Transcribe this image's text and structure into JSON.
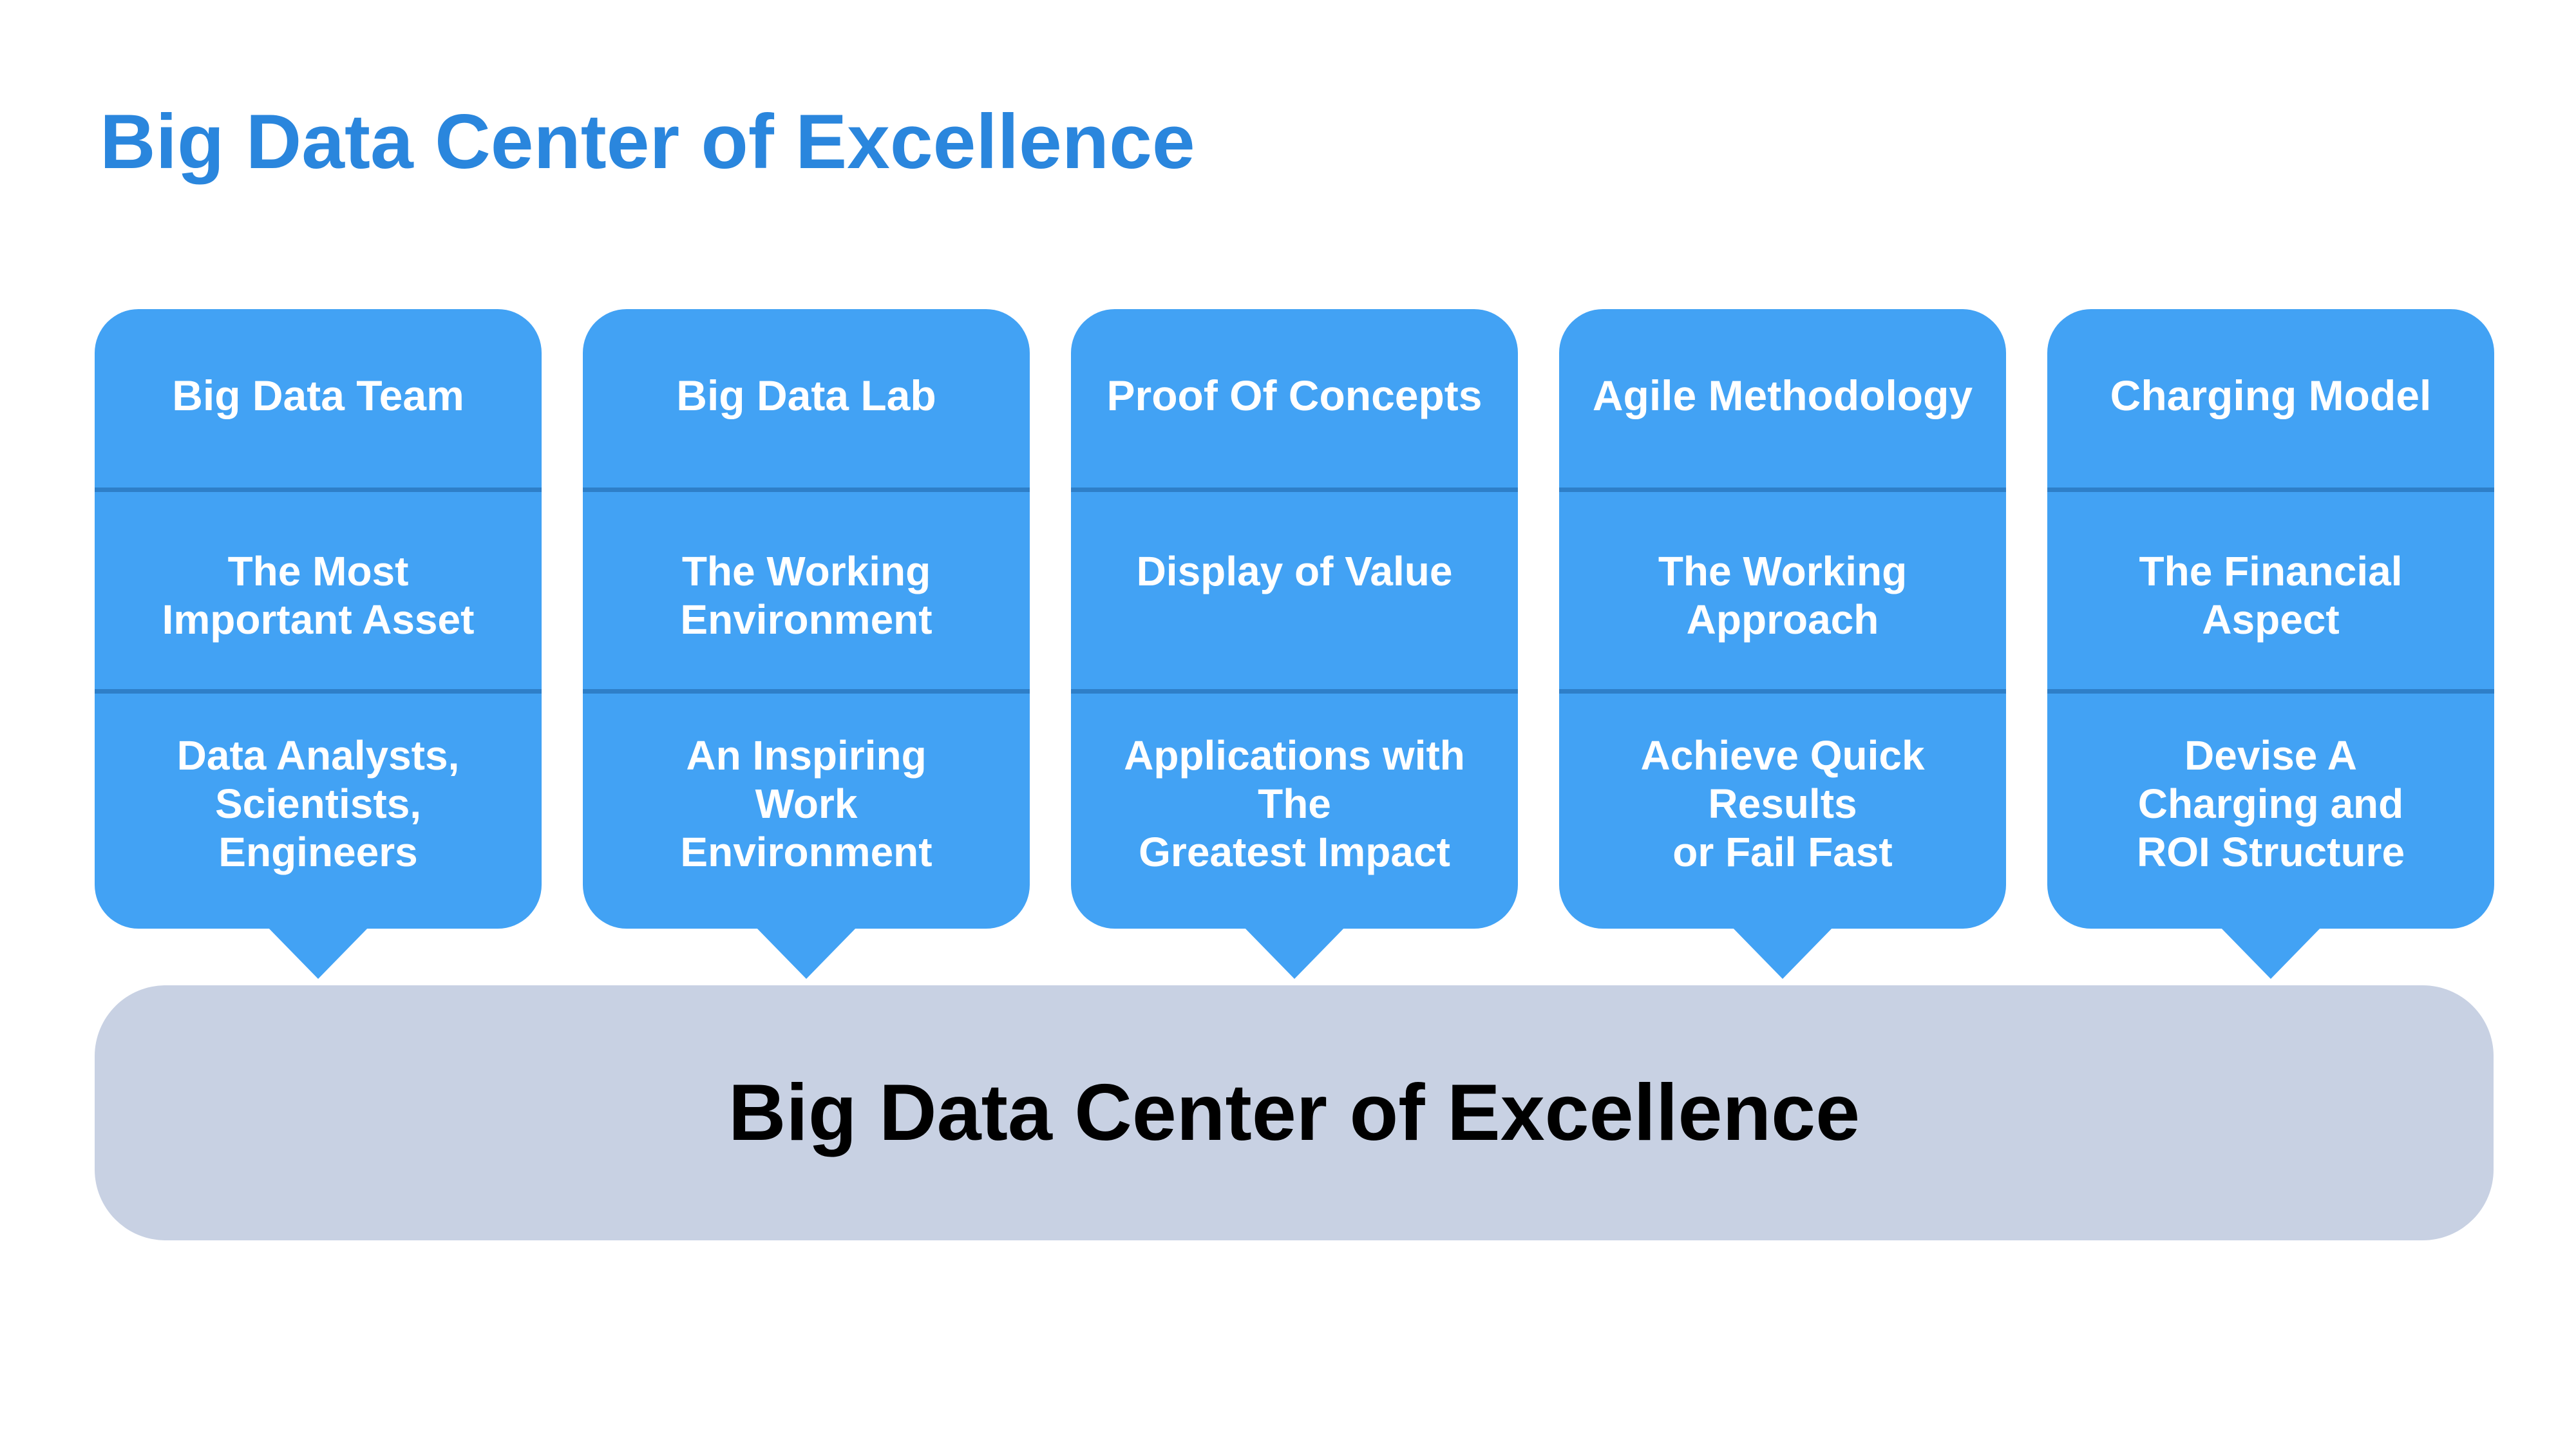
{
  "title": "Big Data Center of Excellence",
  "colors": {
    "title": "#2A86DD",
    "card": "#42A2F4",
    "divider": "#2E7FC8",
    "base": "#C8D1E3"
  },
  "pillars": [
    {
      "heading": "Big Data Team",
      "focus": "The Most\nImportant Asset",
      "detail": "Data Analysts,\nScientists,\nEngineers"
    },
    {
      "heading": "Big Data Lab",
      "focus": "The Working\nEnvironment",
      "detail": "An Inspiring\nWork\nEnvironment"
    },
    {
      "heading": "Proof Of Concepts",
      "focus": "Display of Value",
      "detail": "Applications with The\nGreatest Impact"
    },
    {
      "heading": "Agile Methodology",
      "focus": "The Working\nApproach",
      "detail": "Achieve Quick\nResults\nor Fail Fast"
    },
    {
      "heading": "Charging Model",
      "focus": "The Financial\nAspect",
      "detail": "Devise A\nCharging and\nROI Structure"
    }
  ],
  "foundation": {
    "label": "Big Data Center of Excellence"
  }
}
